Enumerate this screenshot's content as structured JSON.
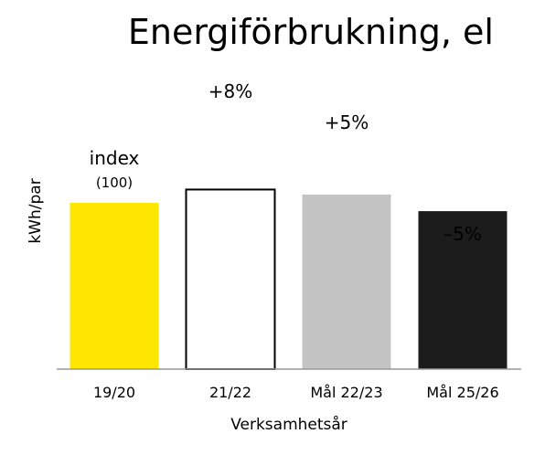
{
  "chart_data": {
    "type": "bar",
    "title": "Energiförbrukning, el",
    "xlabel": "Verksamhetsår",
    "ylabel": "kWh/par",
    "ylim": [
      0,
      1.3
    ],
    "grid": false,
    "categories": [
      "19/20",
      "21/22",
      "Mål 22/23",
      "Mål 25/26"
    ],
    "values": [
      1.0,
      1.08,
      1.05,
      0.95
    ],
    "annotations": [
      "+8%",
      "+5%",
      "–5%"
    ],
    "index_label": "index",
    "index_value": "(100)",
    "colors": {
      "bar_19_20": "#ffe600",
      "bar_21_22": "#ffffff",
      "bar_21_22_stroke": "#000000",
      "bar_mal_22_23": "#c4c4c4",
      "bar_mal_25_26": "#1c1c1c",
      "axis": "#999999"
    }
  }
}
